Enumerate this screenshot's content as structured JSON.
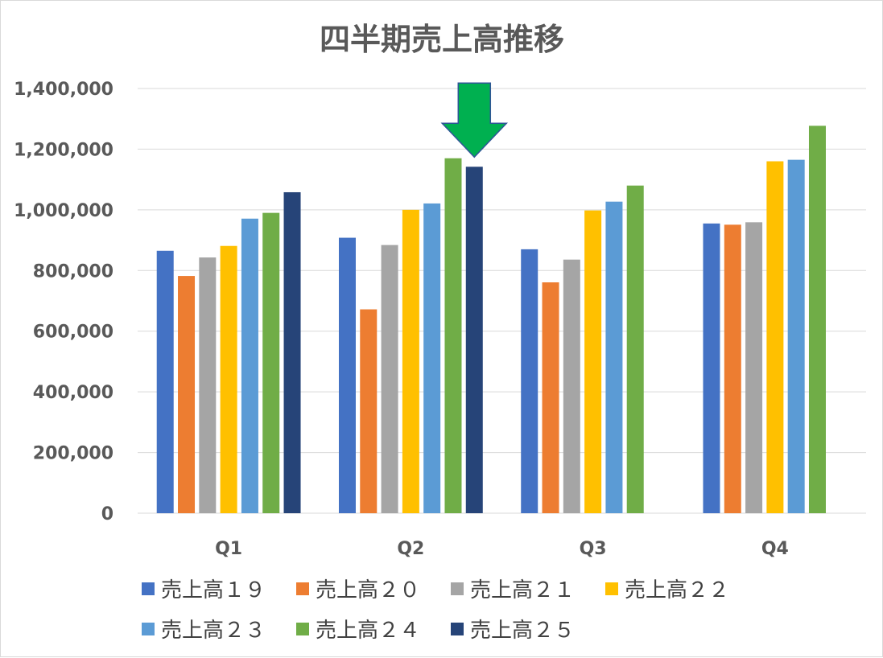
{
  "chart_data": {
    "type": "bar",
    "title": "四半期売上高推移",
    "xlabel": "",
    "ylabel": "",
    "ylim": [
      0,
      1400000
    ],
    "yticks": [
      0,
      200000,
      400000,
      600000,
      800000,
      1000000,
      1200000,
      1400000
    ],
    "ytick_labels": [
      "0",
      "200,000",
      "400,000",
      "600,000",
      "800,000",
      "1,000,000",
      "1,200,000",
      "1,400,000"
    ],
    "categories": [
      "Q1",
      "Q2",
      "Q3",
      "Q4"
    ],
    "grid": true,
    "legend_position": "bottom",
    "series": [
      {
        "name": "売上高１９",
        "color": "#4472C4",
        "values": [
          865000,
          908000,
          870000,
          955000
        ]
      },
      {
        "name": "売上高２０",
        "color": "#ED7D31",
        "values": [
          782000,
          672000,
          761000,
          951000
        ]
      },
      {
        "name": "売上高２１",
        "color": "#A5A5A5",
        "values": [
          843000,
          884000,
          836000,
          959000
        ]
      },
      {
        "name": "売上高２２",
        "color": "#FFC000",
        "values": [
          881000,
          1000000,
          998000,
          1160000
        ]
      },
      {
        "name": "売上高２３",
        "color": "#5B9BD5",
        "values": [
          971000,
          1021000,
          1027000,
          1165000
        ]
      },
      {
        "name": "売上高２４",
        "color": "#70AD47",
        "values": [
          990000,
          1170000,
          1080000,
          1277000
        ]
      },
      {
        "name": "売上高２５",
        "color": "#264478",
        "values": [
          1058000,
          1142000,
          null,
          null
        ]
      }
    ],
    "annotations": [
      {
        "type": "arrow",
        "direction": "down",
        "category": "Q2",
        "series": "売上高２５",
        "color": "#00B050"
      }
    ]
  }
}
